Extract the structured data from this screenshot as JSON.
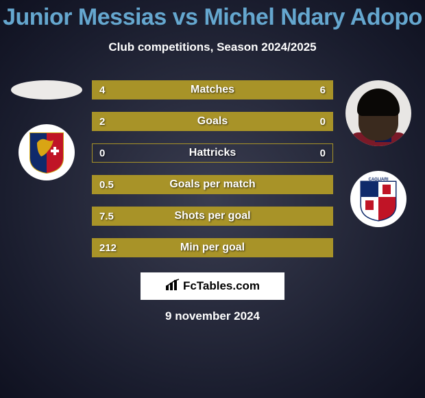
{
  "title": "Junior Messias vs Michel Ndary Adopo",
  "title_color": "#65a7cf",
  "subtitle": "Club competitions, Season 2024/2025",
  "player_left": {
    "name": "Junior Messias"
  },
  "player_right": {
    "name": "Michel Ndary Adopo"
  },
  "club_left": {
    "name": "Genoa",
    "shield": {
      "left_color": "#0f2a6b",
      "right_color": "#c01426",
      "griffin_color": "#d9a514"
    }
  },
  "club_right": {
    "name": "Cagliari",
    "shield": {
      "top_left": "#0f2a6b",
      "top_right": "#ffffff",
      "bottom_left": "#ffffff",
      "bottom_right": "#c01426",
      "border": "#0f2a6b",
      "text": "CAGLIARI"
    }
  },
  "bars": {
    "border_color": "#a89328",
    "fill_color": "#a89328",
    "rows": [
      {
        "label": "Matches",
        "left_val": "4",
        "right_val": "6",
        "left_pct": 40,
        "right_pct": 60
      },
      {
        "label": "Goals",
        "left_val": "2",
        "right_val": "0",
        "left_pct": 100,
        "right_pct": 0
      },
      {
        "label": "Hattricks",
        "left_val": "0",
        "right_val": "0",
        "left_pct": 0,
        "right_pct": 0
      },
      {
        "label": "Goals per match",
        "left_val": "0.5",
        "right_val": "",
        "left_pct": 100,
        "right_pct": 0
      },
      {
        "label": "Shots per goal",
        "left_val": "7.5",
        "right_val": "",
        "left_pct": 100,
        "right_pct": 0
      },
      {
        "label": "Min per goal",
        "left_val": "212",
        "right_val": "",
        "left_pct": 100,
        "right_pct": 0
      }
    ]
  },
  "attribution": {
    "text": "FcTables.com"
  },
  "date": "9 november 2024",
  "colors": {
    "background_center": "#3a3d50",
    "background_edge": "#0f1120",
    "text": "#ffffff"
  },
  "typography": {
    "title_fontsize": 34,
    "title_weight": 800,
    "subtitle_fontsize": 17,
    "bar_label_fontsize": 16,
    "bar_value_fontsize": 15,
    "date_fontsize": 17
  }
}
